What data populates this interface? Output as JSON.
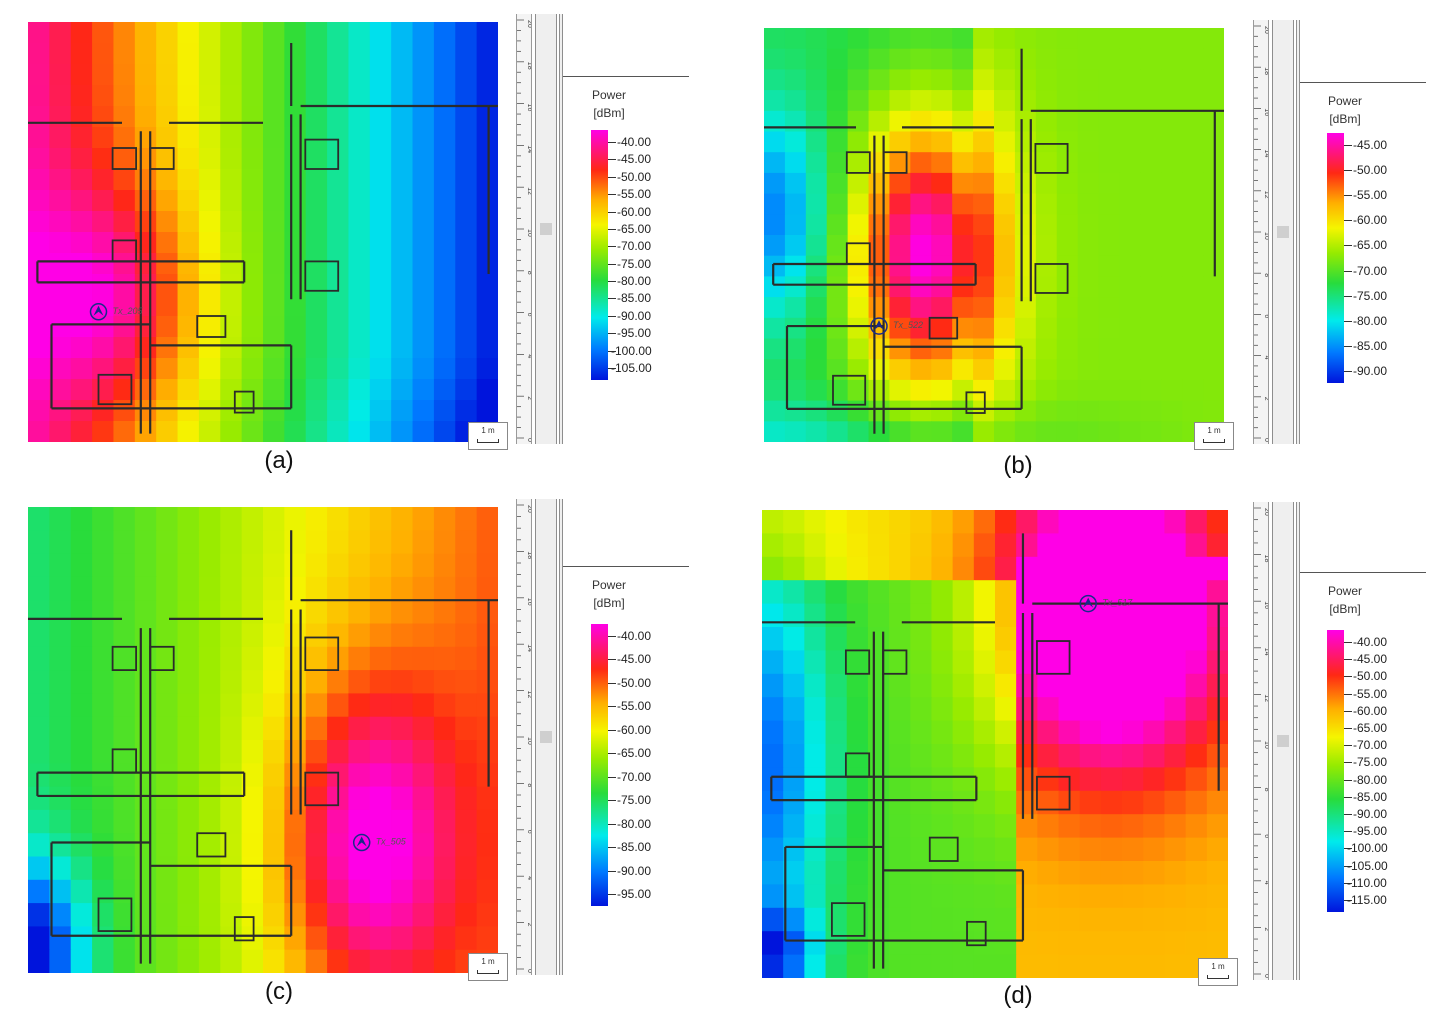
{
  "legend_title": "Power",
  "legend_unit": "[dBm]",
  "scale_label": "1 m",
  "chart_data": [
    {
      "type": "heatmap",
      "title": "(a)",
      "tx_label": "Tx_205",
      "colorbar": {
        "label": "Power [dBm]",
        "range": [
          -105,
          -40
        ],
        "ticks": [
          "-40.00",
          "-45.00",
          "-50.00",
          "-55.00",
          "-60.00",
          "-65.00",
          "-70.00",
          "-75.00",
          "-80.00",
          "-85.00",
          "-90.00",
          "-95.00",
          "-100.00",
          "-105.00"
        ]
      },
      "tx_position_m": [
        3.0,
        6.2
      ],
      "grid_cols": 22,
      "grid_rows": 20
    },
    {
      "type": "heatmap",
      "title": "(b)",
      "tx_label": "Tx_522",
      "colorbar": {
        "label": "Power [dBm]",
        "range": [
          -90,
          -45
        ],
        "ticks": [
          "-45.00",
          "-50.00",
          "-55.00",
          "-60.00",
          "-65.00",
          "-70.00",
          "-75.00",
          "-80.00",
          "-85.00",
          "-90.00"
        ]
      },
      "tx_position_m": [
        5.0,
        5.6
      ],
      "grid_cols": 22,
      "grid_rows": 20
    },
    {
      "type": "heatmap",
      "title": "(c)",
      "tx_label": "Tx_505",
      "colorbar": {
        "label": "Power [dBm]",
        "range": [
          -95,
          -40
        ],
        "ticks": [
          "-40.00",
          "-45.00",
          "-50.00",
          "-55.00",
          "-60.00",
          "-65.00",
          "-70.00",
          "-75.00",
          "-80.00",
          "-85.00",
          "-90.00",
          "-95.00"
        ]
      },
      "tx_position_m": [
        14.2,
        5.6
      ],
      "grid_cols": 22,
      "grid_rows": 20
    },
    {
      "type": "heatmap",
      "title": "(d)",
      "tx_label": "Tx_517",
      "colorbar": {
        "label": "Power [dBm]",
        "range": [
          -115,
          -40
        ],
        "ticks": [
          "-40.00",
          "-45.00",
          "-50.00",
          "-55.00",
          "-60.00",
          "-65.00",
          "-70.00",
          "-75.00",
          "-80.00",
          "-85.00",
          "-90.00",
          "-95.00",
          "-100.00",
          "-105.00",
          "-110.00",
          "-115.00"
        ]
      },
      "tx_position_m": [
        14.0,
        16.0
      ],
      "grid_cols": 22,
      "grid_rows": 20
    }
  ],
  "ruler_ticks": [
    [
      "20",
      "18",
      "16",
      "14",
      "12",
      "10",
      "8",
      "6",
      "4",
      "2",
      "0"
    ],
    [
      "20",
      "18",
      "16",
      "14",
      "12",
      "10",
      "8",
      "6",
      "4",
      "2",
      "0"
    ],
    [
      "20",
      "18",
      "16",
      "14",
      "12",
      "10",
      "8",
      "6",
      "4",
      "2",
      "0"
    ],
    [
      "20",
      "18",
      "16",
      "14",
      "12",
      "10",
      "8",
      "6",
      "4",
      "2",
      "0"
    ]
  ]
}
